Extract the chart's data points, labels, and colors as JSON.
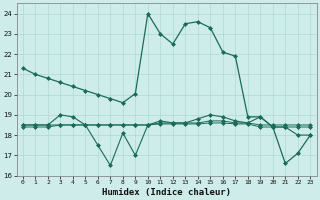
{
  "xlabel": "Humidex (Indice chaleur)",
  "bg_color": "#ceecea",
  "grid_color": "#aed8d4",
  "line_color": "#1a6b5a",
  "xlim": [
    -0.5,
    23.5
  ],
  "ylim": [
    16,
    24.5
  ],
  "yticks": [
    16,
    17,
    18,
    19,
    20,
    21,
    22,
    23,
    24
  ],
  "xticks": [
    0,
    1,
    2,
    3,
    4,
    5,
    6,
    7,
    8,
    9,
    10,
    11,
    12,
    13,
    14,
    15,
    16,
    17,
    18,
    19,
    20,
    21,
    22,
    23
  ],
  "line1_x": [
    0,
    1,
    2,
    3,
    4,
    5,
    6,
    7,
    8,
    9,
    10,
    11,
    12,
    13,
    14,
    15,
    16,
    17,
    18,
    19,
    20,
    21,
    22,
    23
  ],
  "line1_y": [
    21.3,
    21.0,
    20.8,
    20.6,
    20.4,
    20.2,
    20.0,
    19.8,
    19.6,
    20.05,
    24.0,
    23.0,
    22.5,
    23.5,
    23.6,
    23.3,
    22.1,
    21.9,
    18.9,
    18.9,
    18.4,
    16.6,
    17.1,
    18.0
  ],
  "line2_x": [
    0,
    1,
    2,
    3,
    4,
    5,
    6,
    7,
    8,
    9,
    10,
    11,
    12,
    13,
    14,
    15,
    16,
    17,
    18,
    19,
    20,
    21,
    22,
    23
  ],
  "line2_y": [
    18.5,
    18.5,
    18.5,
    19.0,
    18.9,
    18.5,
    17.5,
    16.5,
    18.1,
    17.0,
    18.5,
    18.7,
    18.6,
    18.6,
    18.8,
    19.0,
    18.9,
    18.7,
    18.6,
    18.9,
    18.4,
    18.4,
    18.0,
    18.0
  ],
  "line3_x": [
    0,
    1,
    2,
    3,
    4,
    5,
    6,
    7,
    8,
    9,
    10,
    11,
    12,
    13,
    14,
    15,
    16,
    17,
    18,
    19,
    20,
    21,
    22,
    23
  ],
  "line3_y": [
    18.5,
    18.5,
    18.5,
    18.5,
    18.5,
    18.5,
    18.5,
    18.5,
    18.5,
    18.5,
    18.5,
    18.6,
    18.6,
    18.6,
    18.6,
    18.7,
    18.7,
    18.6,
    18.6,
    18.5,
    18.5,
    18.5,
    18.5,
    18.5
  ],
  "line4_x": [
    0,
    1,
    2,
    3,
    4,
    5,
    6,
    7,
    8,
    9,
    10,
    11,
    12,
    13,
    14,
    15,
    16,
    17,
    18,
    19,
    20,
    21,
    22,
    23
  ],
  "line4_y": [
    18.4,
    18.4,
    18.4,
    18.5,
    18.5,
    18.5,
    18.5,
    18.5,
    18.5,
    18.5,
    18.5,
    18.55,
    18.55,
    18.55,
    18.55,
    18.6,
    18.6,
    18.55,
    18.55,
    18.4,
    18.4,
    18.4,
    18.4,
    18.4
  ]
}
